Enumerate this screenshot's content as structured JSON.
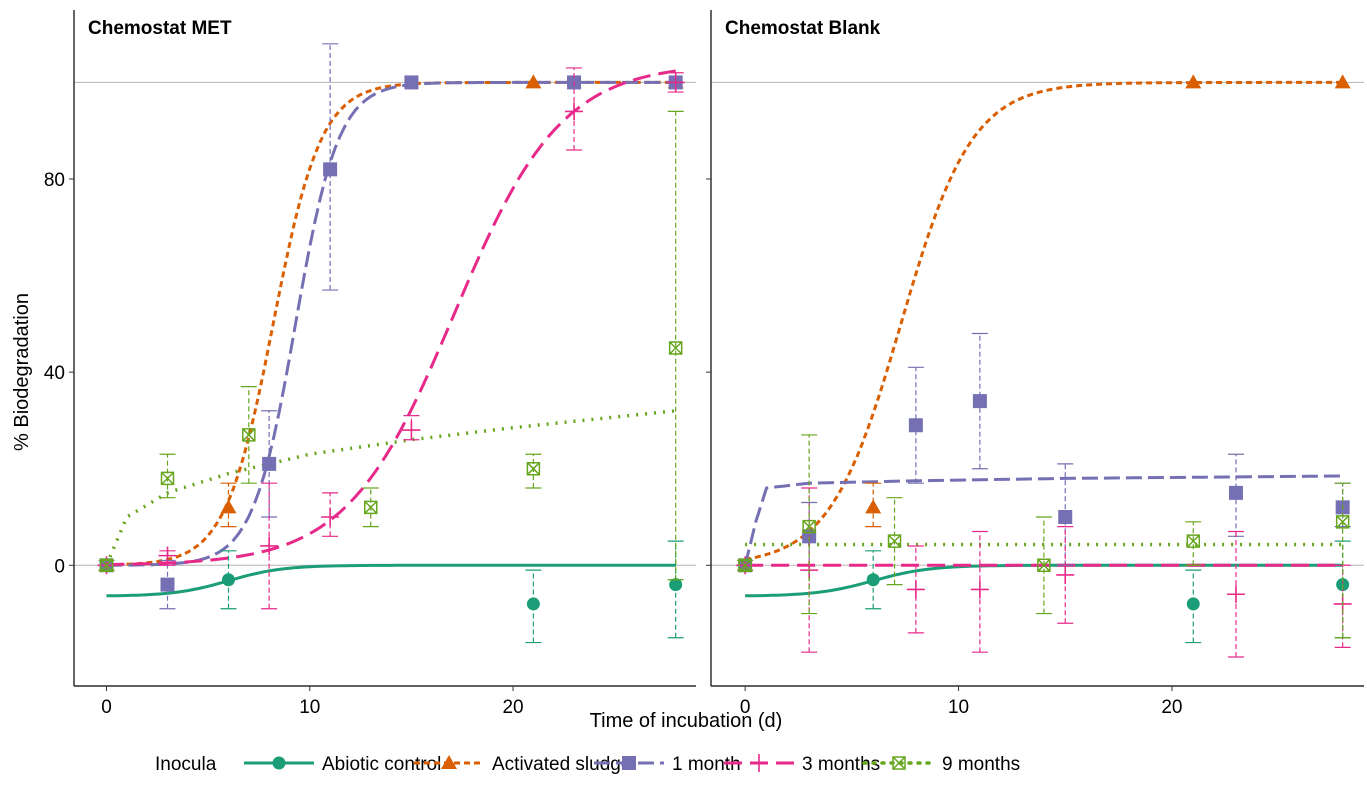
{
  "chart_data": {
    "type": "scatter",
    "xlabel": "Time of incubation (d)",
    "ylabel": "% Biodegradation",
    "xlim": [
      -1.6,
      29
    ],
    "ylim": [
      -25,
      115
    ],
    "xticks": [
      0,
      10,
      20
    ],
    "yticks": [
      0,
      40,
      80
    ],
    "reference_lines": [
      0,
      100
    ],
    "legend": {
      "title": "Inocula",
      "placement": "bottom"
    },
    "series_styles": [
      {
        "name": "Abiotic control",
        "color": "#1b9e77",
        "dash": "",
        "marker": "circle",
        "width": 3
      },
      {
        "name": "Activated sludge",
        "color": "#d95f02",
        "dash": "6 4",
        "marker": "triangle",
        "width": 3
      },
      {
        "name": "1 month",
        "color": "#7570b3",
        "dash": "16 6",
        "marker": "square",
        "width": 3
      },
      {
        "name": "3 months",
        "color": "#e7298a",
        "dash": "18 8",
        "marker": "plus",
        "width": 3
      },
      {
        "name": "9 months",
        "color": "#66a61e",
        "dash": "2 7",
        "marker": "boxx",
        "width": 3.5
      }
    ],
    "panels": [
      {
        "title": "Chemostat MET",
        "points": [
          {
            "series": 0,
            "data": [
              [
                0,
                0,
                0,
                0
              ],
              [
                6,
                -3,
                -9,
                3
              ],
              [
                21,
                -8,
                -16,
                -1
              ],
              [
                28,
                -4,
                -15,
                5
              ]
            ]
          },
          {
            "series": 1,
            "data": [
              [
                0,
                0,
                0,
                0
              ],
              [
                6,
                12,
                8,
                17
              ],
              [
                21,
                100,
                100,
                100
              ],
              [
                28,
                100,
                100,
                100
              ]
            ]
          },
          {
            "series": 2,
            "data": [
              [
                0,
                0,
                0,
                0
              ],
              [
                3,
                -4,
                -9,
                1
              ],
              [
                8,
                21,
                10,
                32
              ],
              [
                11,
                82,
                57,
                108
              ],
              [
                15,
                100,
                100,
                100
              ],
              [
                23,
                100,
                100,
                100
              ],
              [
                28,
                100,
                100,
                100
              ]
            ]
          },
          {
            "series": 3,
            "data": [
              [
                0,
                0,
                0,
                0
              ],
              [
                3,
                2,
                0,
                3
              ],
              [
                8,
                4,
                -9,
                17
              ],
              [
                11,
                10,
                6,
                15
              ],
              [
                15,
                28,
                26,
                31
              ],
              [
                23,
                94,
                86,
                103
              ],
              [
                28,
                100,
                98,
                102
              ]
            ]
          },
          {
            "series": 4,
            "data": [
              [
                0,
                0,
                -1,
                1
              ],
              [
                3,
                18,
                14,
                23
              ],
              [
                7,
                27,
                17,
                37
              ],
              [
                13,
                12,
                8,
                16
              ],
              [
                21,
                20,
                16,
                23
              ],
              [
                28,
                45,
                -3,
                94
              ]
            ]
          }
        ],
        "curves": [
          {
            "series": 0,
            "model": "logistic",
            "min": -6.4,
            "max": 0,
            "mid": 6.0,
            "rate": 0.75,
            "from": 0,
            "to": 28
          },
          {
            "series": 1,
            "model": "logistic",
            "min": 0,
            "max": 100,
            "mid": 8.2,
            "rate": 0.85,
            "from": 0,
            "to": 28
          },
          {
            "series": 2,
            "model": "logistic",
            "min": 0,
            "max": 100,
            "mid": 9.3,
            "rate": 0.95,
            "from": 0,
            "to": 28
          },
          {
            "series": 3,
            "model": "logistic",
            "min": 0,
            "max": 104,
            "mid": 17.1,
            "rate": 0.38,
            "from": 0,
            "to": 28
          },
          {
            "series": 4,
            "model": "log",
            "points": [
              [
                0,
                0
              ],
              [
                1,
                10
              ],
              [
                3,
                15
              ],
              [
                6,
                19
              ],
              [
                10,
                23
              ],
              [
                15,
                26
              ],
              [
                20,
                28.5
              ],
              [
                28,
                32
              ]
            ]
          }
        ]
      },
      {
        "title": "Chemostat Blank",
        "points": [
          {
            "series": 0,
            "data": [
              [
                0,
                0,
                0,
                0
              ],
              [
                6,
                -3,
                -9,
                3
              ],
              [
                21,
                -8,
                -16,
                -1
              ],
              [
                28,
                -4,
                -15,
                5
              ]
            ]
          },
          {
            "series": 1,
            "data": [
              [
                0,
                0,
                0,
                0
              ],
              [
                6,
                12,
                8,
                17
              ],
              [
                21,
                100,
                100,
                100
              ],
              [
                28,
                100,
                100,
                100
              ]
            ]
          },
          {
            "series": 2,
            "data": [
              [
                0,
                0,
                0,
                0
              ],
              [
                3,
                6,
                -1,
                13
              ],
              [
                8,
                29,
                17,
                41
              ],
              [
                11,
                34,
                20,
                48
              ],
              [
                15,
                10,
                0,
                21
              ],
              [
                23,
                15,
                6,
                23
              ],
              [
                28,
                12,
                8,
                17
              ]
            ]
          },
          {
            "series": 3,
            "data": [
              [
                0,
                0,
                0,
                0
              ],
              [
                3,
                -1,
                -18,
                16
              ],
              [
                8,
                -5,
                -14,
                4
              ],
              [
                11,
                -5,
                -18,
                7
              ],
              [
                15,
                -2,
                -12,
                8
              ],
              [
                23,
                -6,
                -19,
                7
              ],
              [
                28,
                -8,
                -17,
                0
              ]
            ]
          },
          {
            "series": 4,
            "data": [
              [
                0,
                0,
                -1,
                1
              ],
              [
                3,
                8,
                -10,
                27
              ],
              [
                7,
                5,
                -4,
                14
              ],
              [
                14,
                0,
                -10,
                10
              ],
              [
                21,
                5,
                0,
                9
              ],
              [
                28,
                9,
                -15,
                17
              ]
            ]
          }
        ],
        "curves": [
          {
            "series": 0,
            "model": "logistic",
            "min": -6.4,
            "max": 0,
            "mid": 6.0,
            "rate": 0.75,
            "from": 0,
            "to": 28
          },
          {
            "series": 1,
            "model": "logistic",
            "min": 0,
            "max": 100,
            "mid": 7.3,
            "rate": 0.6,
            "from": 0,
            "to": 28
          },
          {
            "series": 2,
            "model": "log",
            "points": [
              [
                0,
                0
              ],
              [
                0.5,
                9
              ],
              [
                1,
                16
              ],
              [
                3,
                17
              ],
              [
                8,
                17.5
              ],
              [
                15,
                18
              ],
              [
                28,
                18.5
              ]
            ]
          },
          {
            "series": 3,
            "model": "flat",
            "value": 0,
            "from": 0,
            "to": 28
          },
          {
            "series": 4,
            "model": "flat",
            "value": 4.3,
            "from": 0,
            "to": 28
          }
        ]
      }
    ]
  }
}
